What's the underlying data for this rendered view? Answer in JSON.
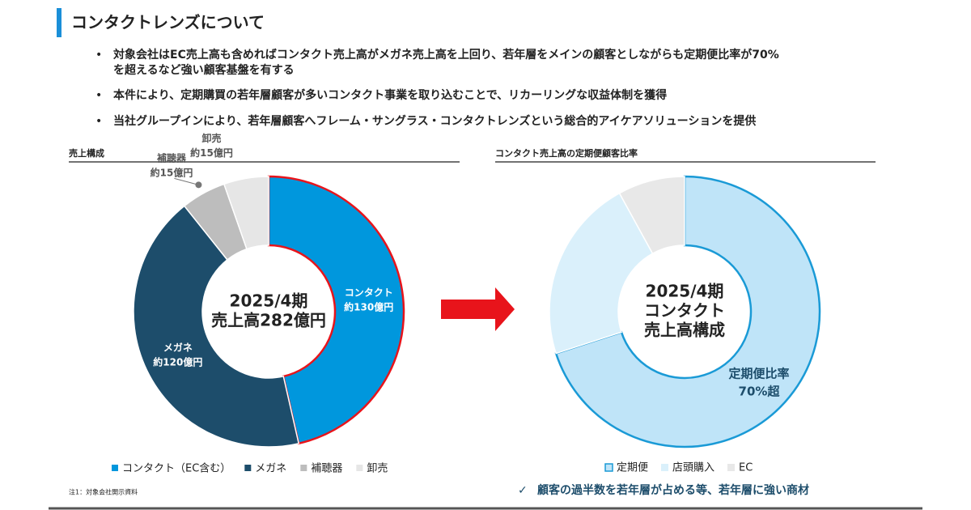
{
  "header": {
    "title": "コンタクトレンズについて"
  },
  "bullets": [
    [
      "対象会社はEC売上高も含めればコンタクト売上高がメガネ売上高を上回り、若年層をメインの顧客としながらも定期便比率が70%",
      "を超えるなど強い顧客基盤を有する"
    ],
    [
      "本件により、定期購買の若年層顧客が多いコンタクト事業を取り込むことで、リカーリングな収益体制を獲得"
    ],
    [
      "当社グループインにより、若年層顧客へフレーム・サングラス・コンタクトレンズという総合的アイケアソリューションを提供"
    ]
  ],
  "chart_data": [
    {
      "type": "donut",
      "title": "売上構成",
      "center_label": [
        "2025/4期",
        "売上高282億円"
      ],
      "categories": [
        "コンタクト",
        "メガネ",
        "補聴器",
        "卸売"
      ],
      "values": [
        130,
        120,
        15,
        15
      ],
      "value_labels": [
        "約130億円",
        "約120億円",
        "約15億円",
        "約15億円"
      ],
      "legend": [
        "コンタクト（EC含む）",
        "メガネ",
        "補聴器",
        "卸売"
      ],
      "colors": [
        "#0097dd",
        "#1d4d6b",
        "#bdbdbd",
        "#e6e6e6"
      ]
    },
    {
      "type": "donut",
      "title": "コンタクト売上高の定期便顧客比率",
      "center_label": [
        "2025/4期",
        "コンタクト",
        "売上高構成"
      ],
      "categories": [
        "定期便",
        "店頭購入",
        "EC"
      ],
      "values": [
        70,
        22,
        8
      ],
      "annotation": "定期便比率",
      "value_labels": [
        "70%超",
        null,
        null
      ],
      "colors": [
        "#bfe4f8",
        "#daf0fb",
        "#e8e8e8"
      ]
    }
  ],
  "conclusion": "顧客の過半数を若年層が占める等、若年層に強い商材",
  "footnote": "注1：対象会社開示資料"
}
